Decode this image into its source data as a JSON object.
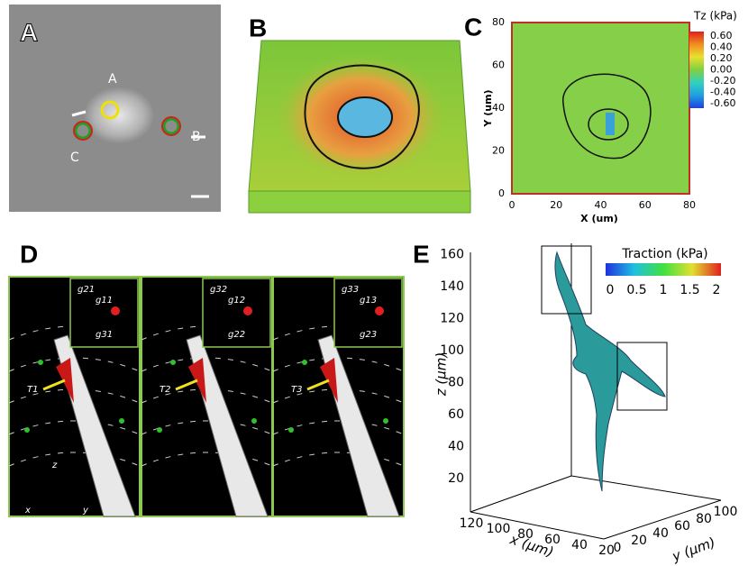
{
  "panels": {
    "a": {
      "label": "A",
      "markers": [
        "A",
        "B",
        "C"
      ]
    },
    "b": {
      "label": "B"
    },
    "c": {
      "label": "C",
      "x_label": "X (um)",
      "y_label": "Y (um)",
      "x_ticks": [
        "0",
        "20",
        "40",
        "60",
        "80"
      ],
      "y_ticks": [
        "0",
        "20",
        "40",
        "60",
        "80"
      ],
      "colorbar_title": "Tz (kPa)",
      "colorbar_ticks": [
        "0.60",
        "0.40",
        "0.20",
        "0.00",
        "-0.20",
        "-0.40",
        "-0.60"
      ]
    },
    "d": {
      "label": "D",
      "frames": [
        {
          "g": [
            "g21",
            "g11",
            "g31"
          ],
          "t": "T1"
        },
        {
          "g": [
            "g32",
            "g12",
            "g22"
          ],
          "t": "T2"
        },
        {
          "g": [
            "g33",
            "g13",
            "g23"
          ],
          "t": "T3"
        }
      ],
      "axes": [
        "z",
        "x",
        "y"
      ]
    },
    "e": {
      "label": "E",
      "colorbar_title": "Traction (kPa)",
      "colorbar_ticks": [
        "0",
        "0.5",
        "1",
        "1.5",
        "2"
      ],
      "z_label": "z (μm)",
      "z_ticks": [
        "20",
        "40",
        "60",
        "80",
        "100",
        "120",
        "140",
        "160"
      ],
      "x_label": "x (μm)",
      "x_ticks": [
        "120",
        "100",
        "80",
        "60",
        "40",
        "20"
      ],
      "y_label": "y (μm)",
      "y_ticks": [
        "0",
        "20",
        "40",
        "60",
        "80",
        "100"
      ]
    }
  }
}
